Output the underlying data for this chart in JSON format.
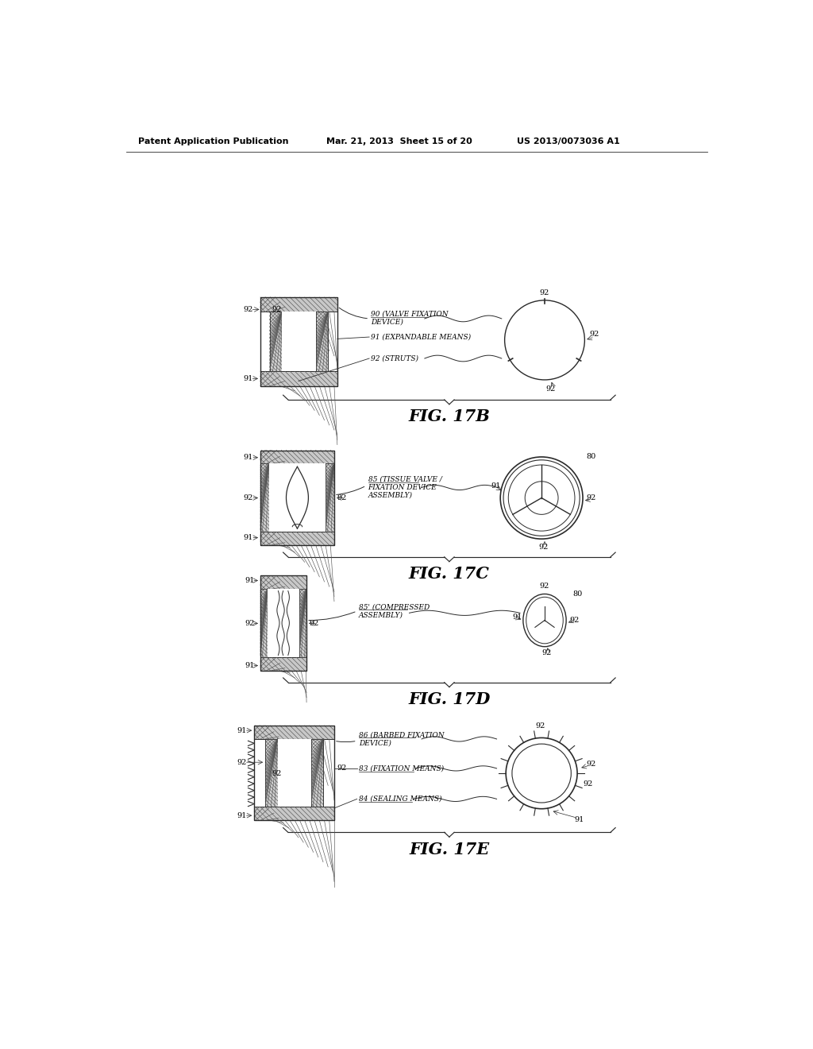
{
  "header_left": "Patent Application Publication",
  "header_mid": "Mar. 21, 2013  Sheet 15 of 20",
  "header_right": "US 2013/0073036 A1",
  "fig17b_label": "FIG. 17B",
  "fig17c_label": "FIG. 17C",
  "fig17d_label": "FIG. 17D",
  "fig17e_label": "FIG. 17E",
  "bg_color": "#ffffff",
  "line_color": "#2a2a2a"
}
